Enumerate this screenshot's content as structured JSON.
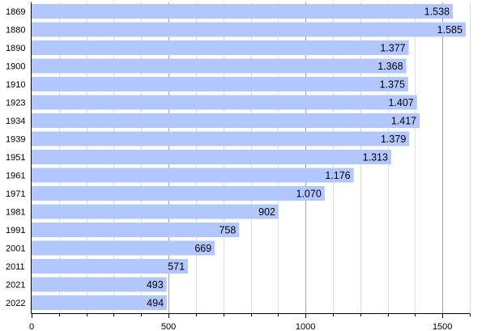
{
  "chart_data": {
    "type": "bar",
    "orientation": "horizontal",
    "title": "",
    "xlabel": "",
    "ylabel": "",
    "categories": [
      "1869",
      "1880",
      "1890",
      "1900",
      "1910",
      "1923",
      "1934",
      "1939",
      "1951",
      "1961",
      "1971",
      "1981",
      "1991",
      "2001",
      "2011",
      "2021",
      "2022"
    ],
    "values": [
      1538,
      1585,
      1377,
      1368,
      1375,
      1407,
      1417,
      1379,
      1313,
      1176,
      1070,
      902,
      758,
      669,
      571,
      493,
      494
    ],
    "value_labels": [
      "1.538",
      "1.585",
      "1.377",
      "1.368",
      "1.375",
      "1.407",
      "1.417",
      "1.379",
      "1.313",
      "1.176",
      "1.070",
      "902",
      "758",
      "669",
      "571",
      "493",
      "494"
    ],
    "xlim": [
      0,
      1600
    ],
    "x_ticks": [
      0,
      500,
      1000,
      1500
    ],
    "x_tick_labels": [
      "0",
      "500",
      "1000",
      "1500"
    ],
    "minor_grid_step": 100,
    "grid": true,
    "legend": "none",
    "bar_color": "#b3c7ff",
    "major_grid_color": "#a6a6a6",
    "minor_grid_color": "#e0e0e0",
    "axis_color": "#000000"
  }
}
